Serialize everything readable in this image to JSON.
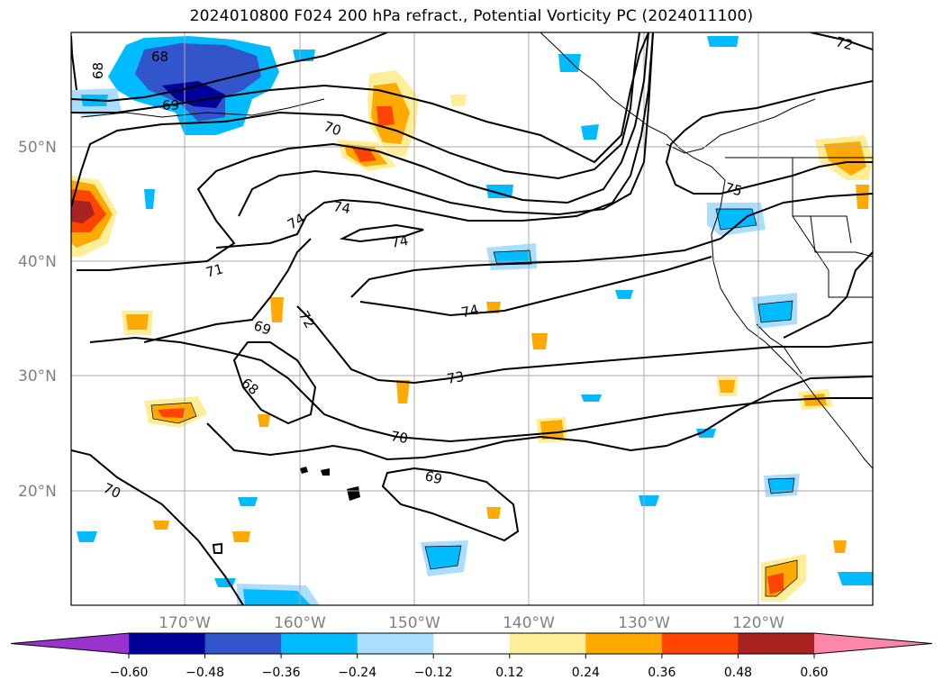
{
  "title": "2024010800 F024 200 hPa refract., Potential Vorticity PC (2024011100)",
  "map": {
    "lat_labels": [
      "50°N",
      "40°N",
      "30°N",
      "20°N"
    ],
    "lon_labels": [
      "170°W",
      "160°W",
      "150°W",
      "140°W",
      "130°W",
      "120°W"
    ],
    "grid": true
  },
  "contour_labels": [
    "68",
    "68",
    "69",
    "70",
    "74",
    "74",
    "74",
    "71",
    "72",
    "69",
    "68",
    "70",
    "73",
    "74",
    "75",
    "72",
    "70",
    "69"
  ],
  "colorbar": {
    "ticks": [
      "−0.60",
      "−0.48",
      "−0.36",
      "−0.24",
      "−0.12",
      "0.12",
      "0.24",
      "0.36",
      "0.48",
      "0.60"
    ],
    "colors": [
      "#9933cc",
      "#000099",
      "#3355cc",
      "#00bbff",
      "#aaddff",
      "#ffffff",
      "#ffee99",
      "#ffaa00",
      "#ff4400",
      "#aa2222",
      "#ff88aa"
    ]
  }
}
